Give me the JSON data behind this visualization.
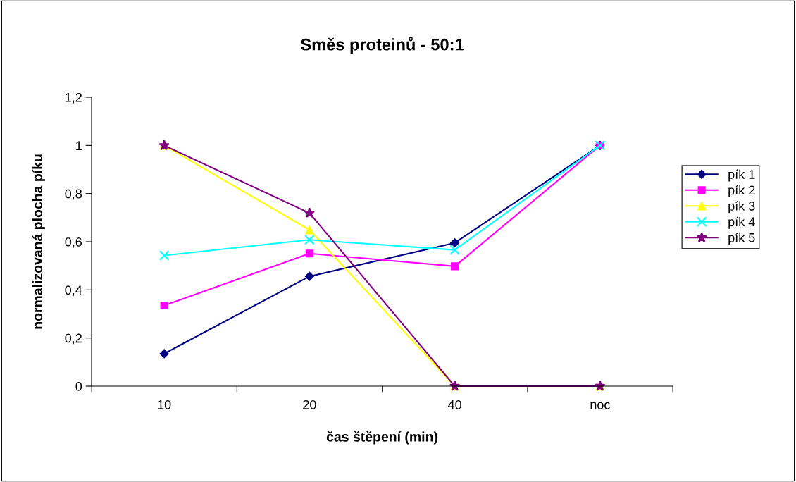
{
  "chart_data": {
    "type": "line",
    "title": "Směs proteinů - 50:1",
    "xlabel": "čas štěpení (min)",
    "ylabel": "normalizovaná plocha píku",
    "categories": [
      "10",
      "20",
      "40",
      "noc"
    ],
    "series": [
      {
        "name": "pík 1",
        "color": "#000080",
        "marker": "diamond",
        "values": [
          0.135,
          0.456,
          0.595,
          1
        ]
      },
      {
        "name": "pík 2",
        "color": "#ff00ff",
        "marker": "square",
        "values": [
          0.335,
          0.551,
          0.498,
          1
        ]
      },
      {
        "name": "pík 3",
        "color": "#ffff00",
        "marker": "triangle",
        "values": [
          1,
          0.649,
          0,
          0
        ]
      },
      {
        "name": "pík 4",
        "color": "#00ffff",
        "marker": "cross",
        "values": [
          0.543,
          0.608,
          0.566,
          1
        ]
      },
      {
        "name": "pík 5",
        "color": "#800080",
        "marker": "star",
        "values": [
          1,
          0.719,
          0,
          0
        ]
      }
    ],
    "ylim": [
      0,
      1.2
    ],
    "yticks": [
      0,
      {
        "value": 0.2,
        "label": "0,2"
      },
      {
        "value": 0.4,
        "label": "0,4"
      },
      {
        "value": 0.6,
        "label": "0,6"
      },
      {
        "value": 0.8,
        "label": "0,8"
      },
      1,
      {
        "value": 1.2,
        "label": "1,2"
      }
    ],
    "grid": false,
    "legend": "right"
  }
}
